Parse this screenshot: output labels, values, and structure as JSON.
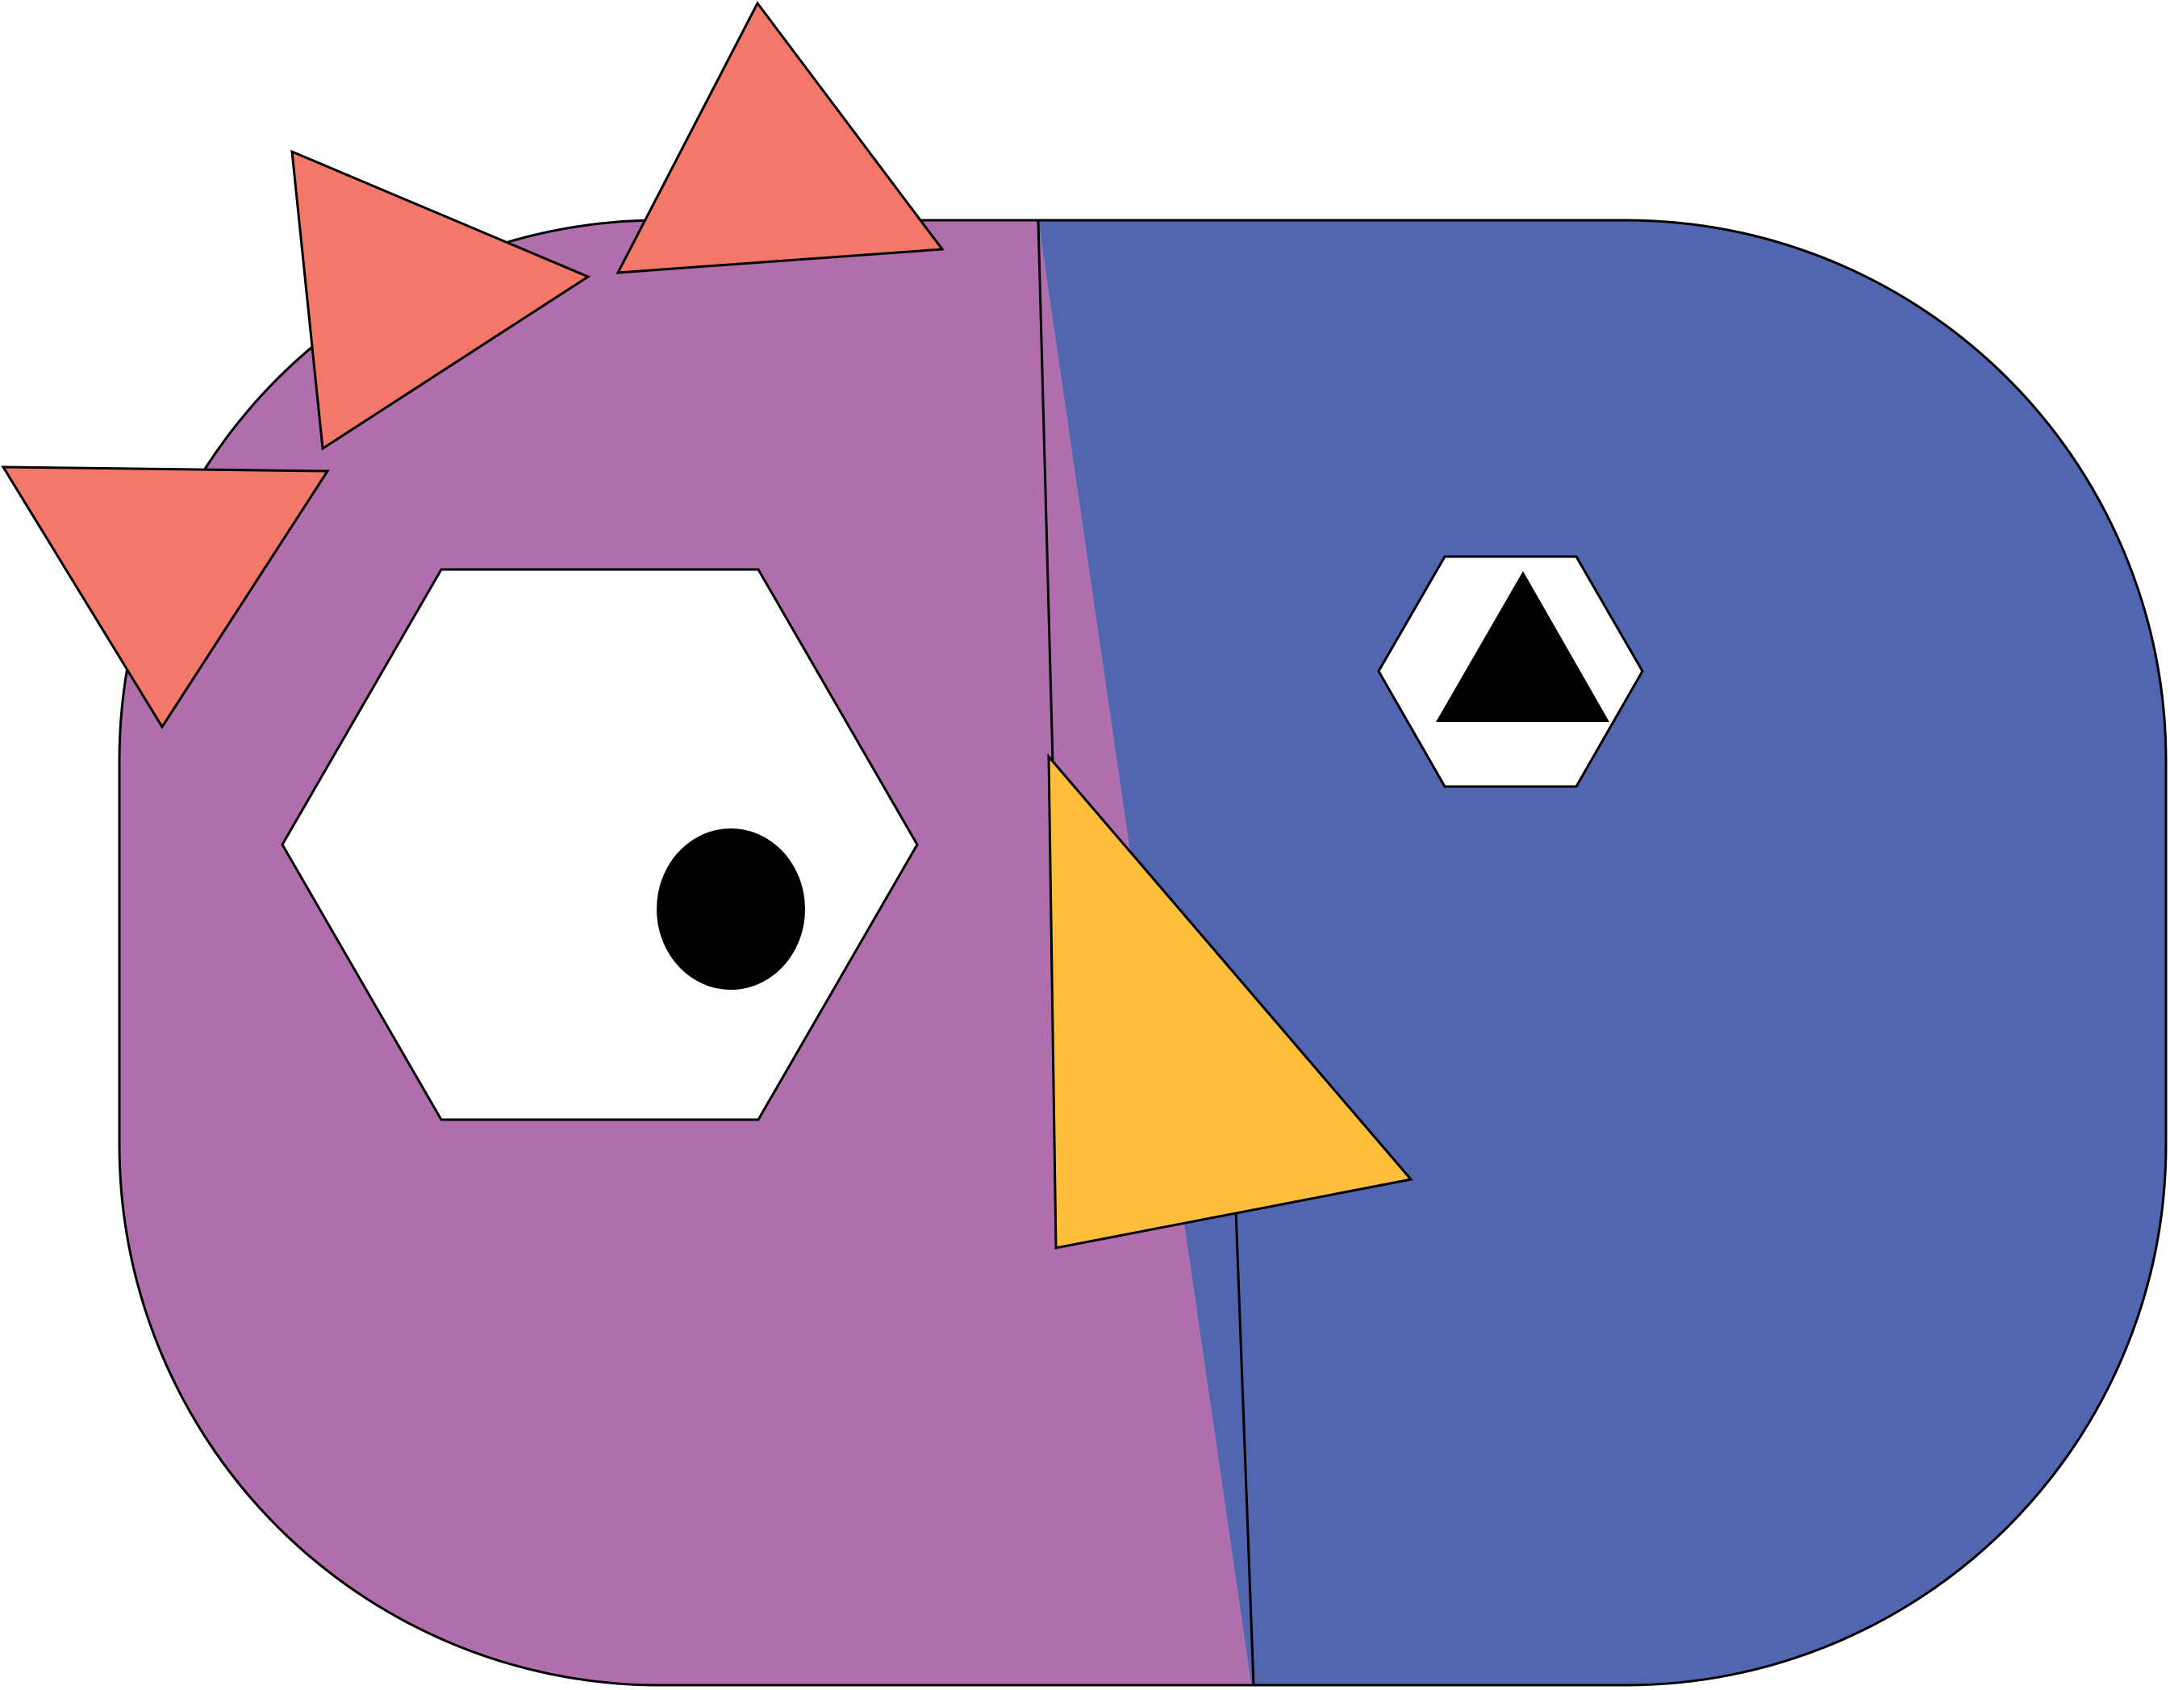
{
  "artwork": {
    "subject": "geometric-bird",
    "colors": {
      "background": "#ffffff",
      "head_left": "#b06eac",
      "head_right": "#5265af",
      "spikes": "#f37869",
      "beak": "#fdbe3b",
      "eye_white": "#ffffff",
      "pupil": "#000000",
      "outline": "#000000"
    },
    "parts": {
      "spikes": [
        "spike-small",
        "spike-middle",
        "spike-top"
      ],
      "left_eye": {
        "shape": "hexagon",
        "pupil_shape": "ellipse"
      },
      "right_eye": {
        "shape": "hexagon",
        "pupil_shape": "triangle"
      },
      "beak": {
        "shape": "triangle"
      }
    }
  }
}
